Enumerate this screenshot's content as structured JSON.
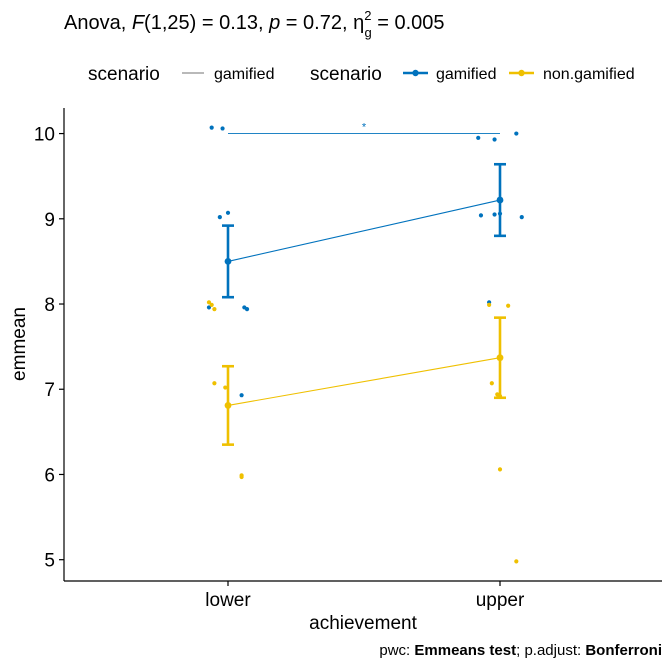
{
  "chart_data": {
    "type": "line",
    "title": {
      "prefix": "Anova, ",
      "f_symbol": "F",
      "f_df": "(1,25) = 0.13, ",
      "p_symbol": "p",
      "p_text": " = 0.72, ",
      "eta_symbol": "η",
      "eta_sup": "2",
      "eta_sub": "g",
      "eta_text": " = 0.005"
    },
    "legend": {
      "position": "top",
      "title1": "scenario",
      "entry1": "gamified",
      "title2": "scenario",
      "entries2": [
        "gamified",
        "non.gamified"
      ]
    },
    "xlabel": "achievement",
    "ylabel": "emmean",
    "categories": [
      "lower",
      "upper"
    ],
    "ylim": [
      4.75,
      10.3
    ],
    "yticks": [
      5,
      6,
      7,
      8,
      9,
      10
    ],
    "series": [
      {
        "name": "gamified",
        "color": "#0072BD",
        "values": [
          8.5,
          9.22
        ],
        "ci_low": [
          8.08,
          8.8
        ],
        "ci_high": [
          8.92,
          9.64
        ],
        "points": [
          {
            "x": -0.06,
            "y": 10.07
          },
          {
            "x": -0.02,
            "y": 10.06
          },
          {
            "x": -0.03,
            "y": 9.02
          },
          {
            "x": 0.0,
            "y": 9.07
          },
          {
            "x": -0.07,
            "y": 7.96
          },
          {
            "x": 0.06,
            "y": 7.96
          },
          {
            "x": 0.07,
            "y": 7.94
          },
          {
            "x": 0.05,
            "y": 6.93
          },
          {
            "x": -0.08,
            "y": 9.95
          },
          {
            "x": -0.02,
            "y": 9.93
          },
          {
            "x": 0.06,
            "y": 10.0
          },
          {
            "x": -0.07,
            "y": 9.04
          },
          {
            "x": -0.02,
            "y": 9.05
          },
          {
            "x": 0.0,
            "y": 9.06
          },
          {
            "x": 0.08,
            "y": 9.02
          },
          {
            "x": -0.04,
            "y": 8.02
          }
        ]
      },
      {
        "name": "non.gamified",
        "color": "#EFC000",
        "values": [
          6.81,
          7.37
        ],
        "ci_low": [
          6.35,
          6.9
        ],
        "ci_high": [
          7.27,
          7.84
        ],
        "points": [
          {
            "x": -0.07,
            "y": 8.02
          },
          {
            "x": -0.06,
            "y": 7.99
          },
          {
            "x": -0.05,
            "y": 7.94
          },
          {
            "x": -0.05,
            "y": 7.07
          },
          {
            "x": -0.01,
            "y": 7.02
          },
          {
            "x": 0.05,
            "y": 5.99
          },
          {
            "x": 0.05,
            "y": 5.97
          },
          {
            "x": -0.04,
            "y": 7.99
          },
          {
            "x": 0.03,
            "y": 7.98
          },
          {
            "x": -0.03,
            "y": 7.07
          },
          {
            "x": -0.01,
            "y": 6.94
          },
          {
            "x": 0.0,
            "y": 6.92
          },
          {
            "x": 0.0,
            "y": 6.06
          },
          {
            "x": 0.06,
            "y": 4.98
          }
        ]
      }
    ],
    "annotations": [
      {
        "from": "lower",
        "to": "upper",
        "y": 10.0,
        "label": "*",
        "color": "#0072BD"
      }
    ],
    "caption": {
      "part1": "pwc: ",
      "part2": "Emmeans test",
      "part3": "; p.adjust: ",
      "part4": "Bonferroni"
    }
  }
}
